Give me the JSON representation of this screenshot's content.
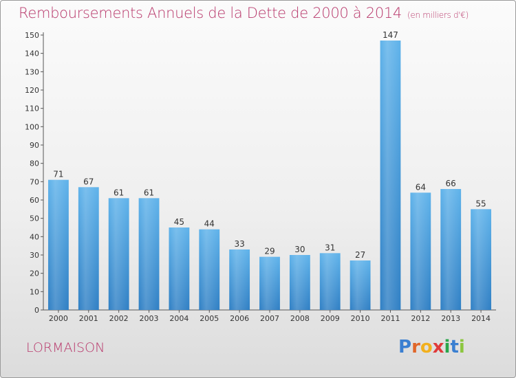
{
  "chart_data": {
    "type": "bar",
    "title": "Remboursements Annuels de la Dette de 2000 à 2014",
    "subtitle": "(en milliers d'€)",
    "categories": [
      "2000",
      "2001",
      "2002",
      "2003",
      "2004",
      "2005",
      "2006",
      "2007",
      "2008",
      "2009",
      "2010",
      "2011",
      "2012",
      "2013",
      "2014"
    ],
    "values": [
      71,
      67,
      61,
      61,
      45,
      44,
      33,
      29,
      30,
      31,
      27,
      147,
      64,
      66,
      55
    ],
    "ylim": [
      0,
      150
    ],
    "yticks": [
      0,
      10,
      20,
      30,
      40,
      50,
      60,
      70,
      80,
      90,
      100,
      110,
      120,
      130,
      140,
      150
    ],
    "xlabel": "",
    "ylabel": "",
    "grid": false,
    "bar_color": "#4aa3e0"
  },
  "footer": {
    "town": "LORMAISON",
    "brand_letters": [
      "P",
      "r",
      "o",
      "x",
      "i",
      "t",
      "i"
    ],
    "brand_colors": [
      "#3a7fd1",
      "#e0662a",
      "#f2b01e",
      "#e03a3a",
      "#2aa64b",
      "#3a7fd1",
      "#8cc63f"
    ]
  }
}
